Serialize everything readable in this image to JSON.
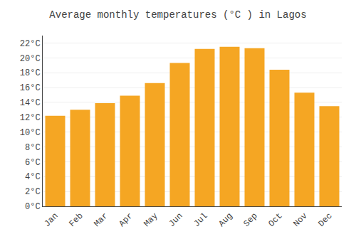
{
  "chart_data": {
    "type": "bar",
    "title": "Average monthly temperatures (°C ) in Lagos",
    "categories": [
      "Jan",
      "Feb",
      "Mar",
      "Apr",
      "May",
      "Jun",
      "Jul",
      "Aug",
      "Sep",
      "Oct",
      "Nov",
      "Dec"
    ],
    "values": [
      12.2,
      13.0,
      13.9,
      14.9,
      16.6,
      19.3,
      21.2,
      21.5,
      21.3,
      18.4,
      15.3,
      13.5
    ],
    "color": "#F5A623",
    "ylim": [
      0,
      23
    ],
    "yticks": [
      {
        "value": 0,
        "label": "0°C"
      },
      {
        "value": 2,
        "label": "2°C"
      },
      {
        "value": 4,
        "label": "4°C"
      },
      {
        "value": 6,
        "label": "6°C"
      },
      {
        "value": 8,
        "label": "8°C"
      },
      {
        "value": 10,
        "label": "10°C"
      },
      {
        "value": 12,
        "label": "12°C"
      },
      {
        "value": 14,
        "label": "14°C"
      },
      {
        "value": 16,
        "label": "16°C"
      },
      {
        "value": 18,
        "label": "18°C"
      },
      {
        "value": 20,
        "label": "20°C"
      },
      {
        "value": 22,
        "label": "22°C"
      }
    ],
    "grid": true
  }
}
